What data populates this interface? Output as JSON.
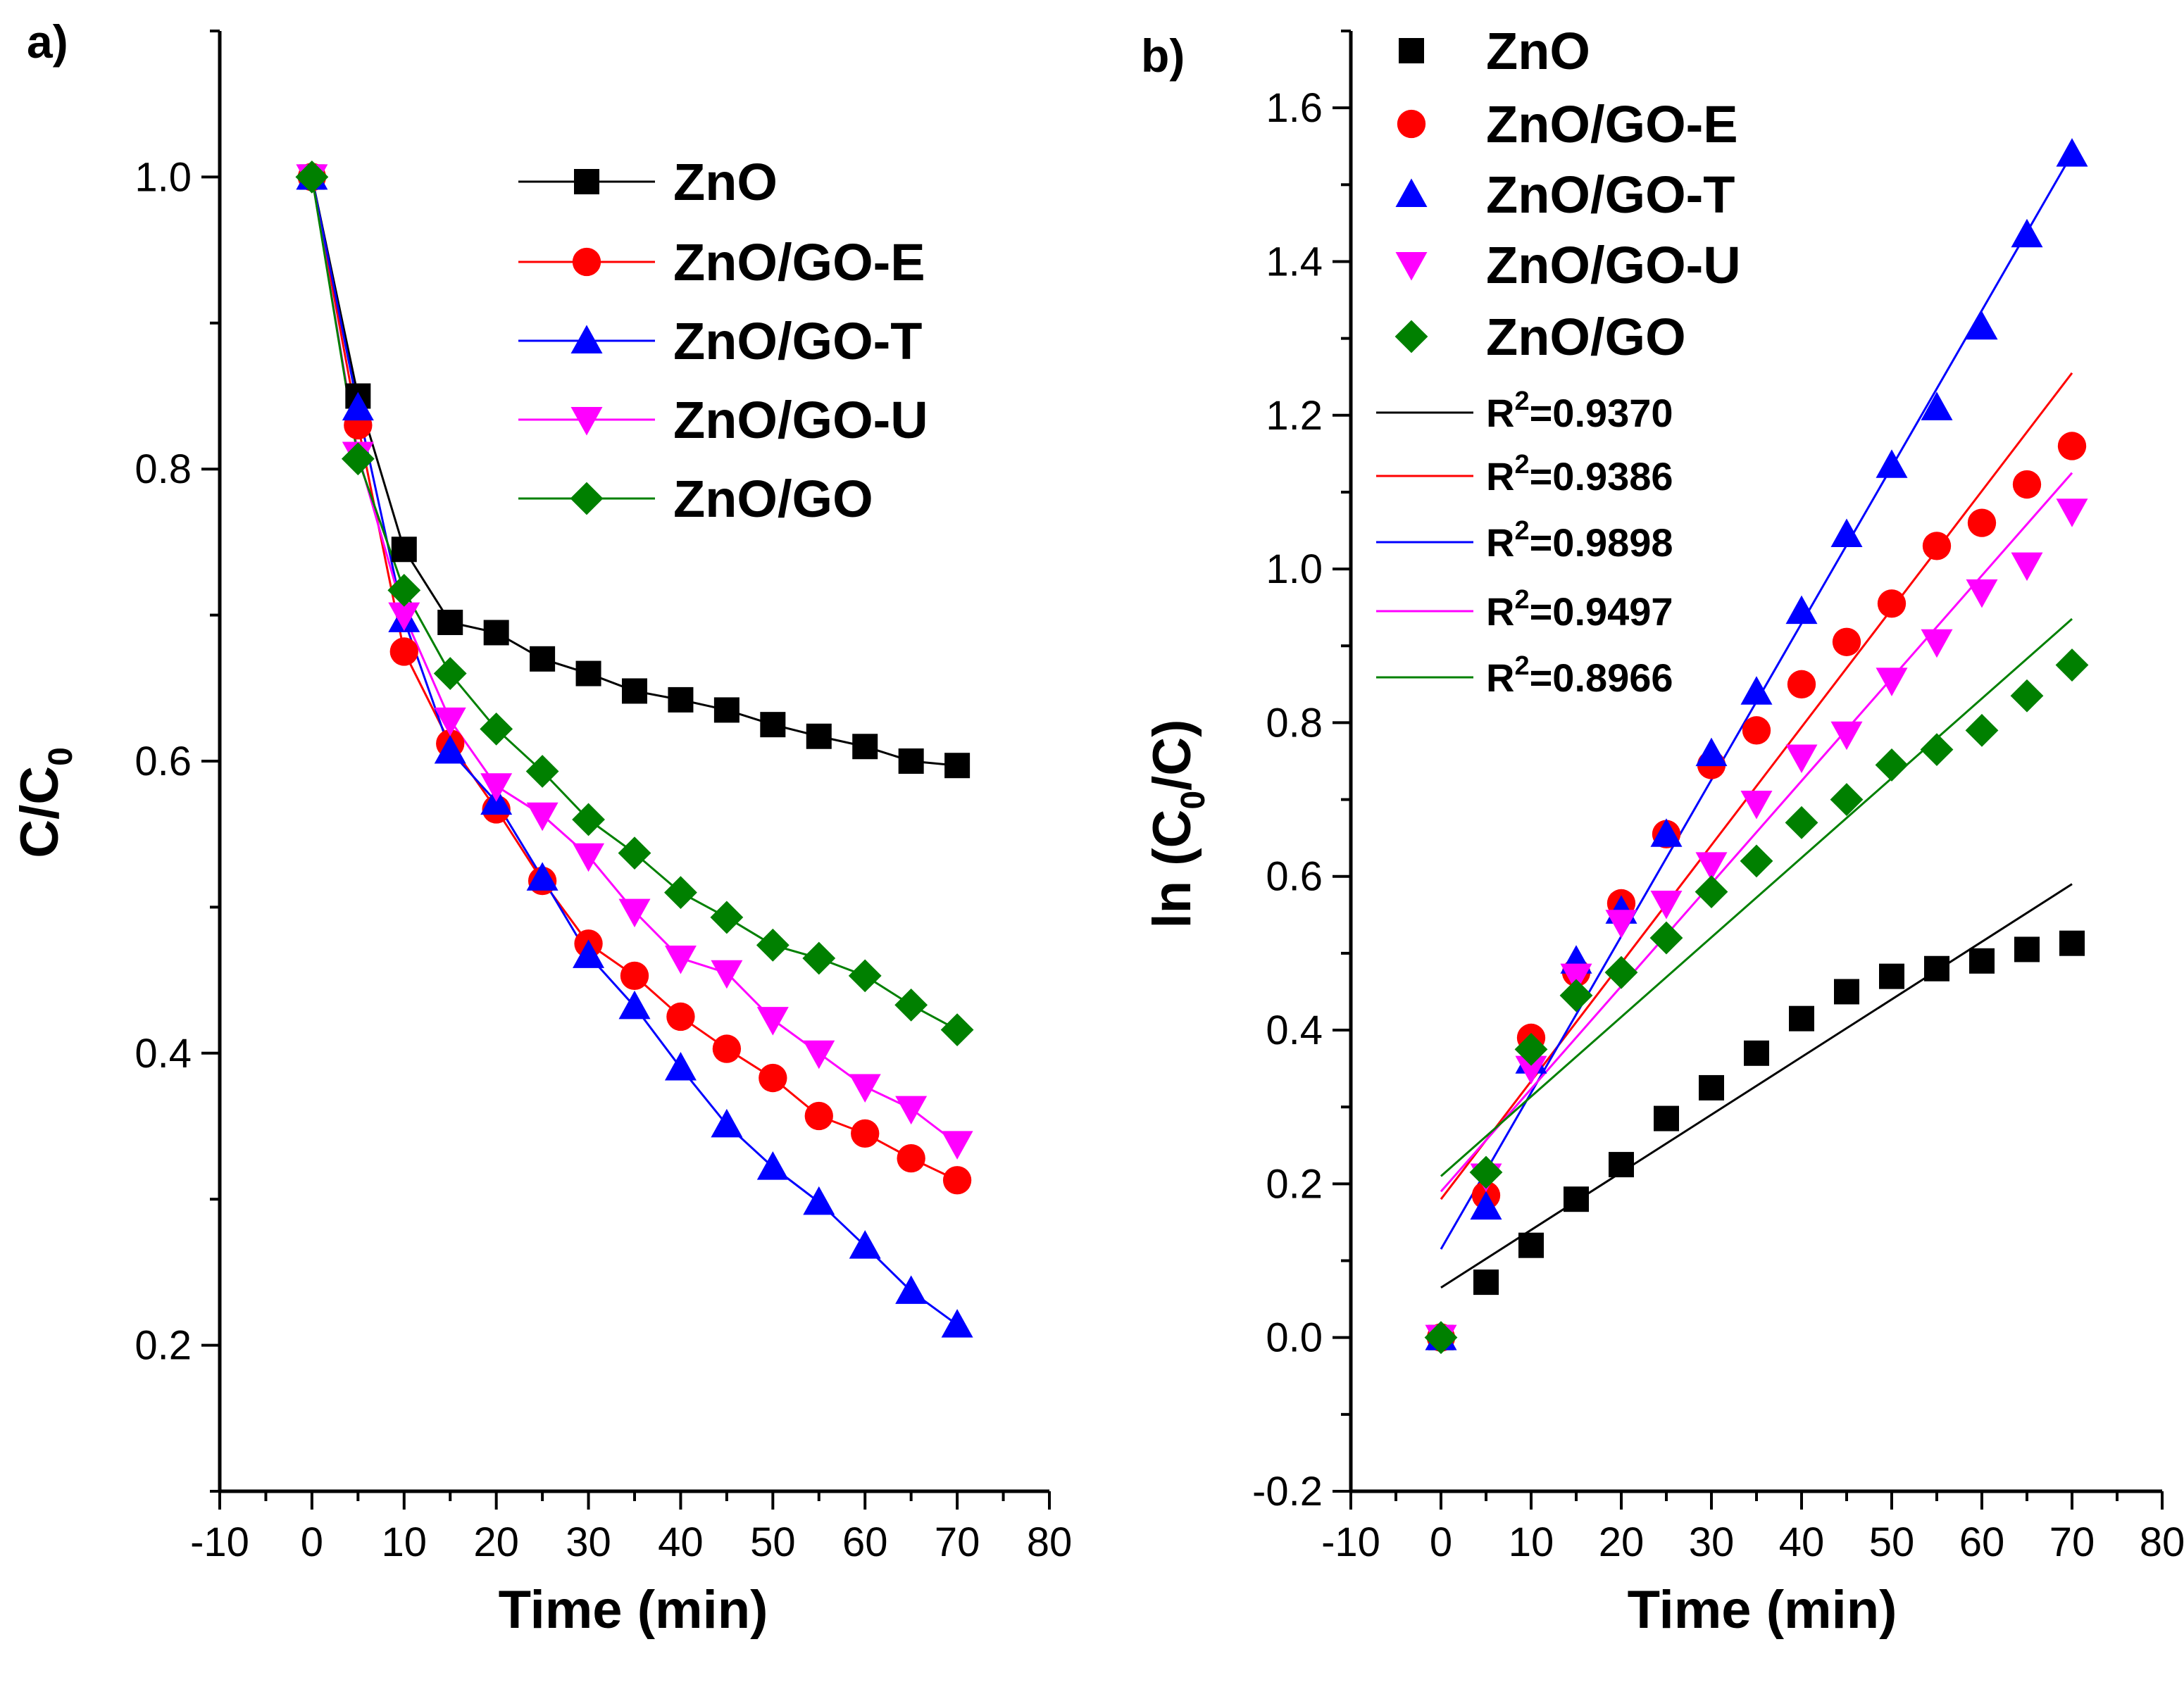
{
  "chart_data": [
    {
      "panel": "a)",
      "type": "line",
      "xlabel": "Time (min)",
      "ylabel": {
        "main": "C/C",
        "sub": "0"
      },
      "xlim": [
        -10,
        80
      ],
      "ylim": [
        0.1,
        1.1
      ],
      "xticks": [
        -10,
        0,
        10,
        20,
        30,
        40,
        50,
        60,
        70,
        80
      ],
      "yticks": [
        0.2,
        0.4,
        0.6,
        0.8,
        1.0
      ],
      "xtick_labels": [
        "-10",
        "0",
        "10",
        "20",
        "30",
        "40",
        "50",
        "60",
        "70",
        "80"
      ],
      "ytick_labels": [
        "0.2",
        "0.4",
        "0.6",
        "0.8",
        "1.0"
      ],
      "legend_position": "top-right",
      "x": [
        0,
        5,
        10,
        15,
        20,
        25,
        30,
        35,
        40,
        45,
        50,
        55,
        60,
        65,
        70
      ],
      "series": [
        {
          "name": "ZnO",
          "color": "#000000",
          "marker": "square",
          "values": [
            1.0,
            0.85,
            0.745,
            0.695,
            0.688,
            0.67,
            0.66,
            0.648,
            0.642,
            0.635,
            0.625,
            0.617,
            0.61,
            0.6,
            0.597
          ]
        },
        {
          "name": "ZnO/GO-E",
          "color": "#ff0000",
          "marker": "circle",
          "values": [
            1.0,
            0.83,
            0.675,
            0.612,
            0.567,
            0.518,
            0.475,
            0.453,
            0.425,
            0.403,
            0.383,
            0.357,
            0.345,
            0.328,
            0.313
          ]
        },
        {
          "name": "ZnO/GO-T",
          "color": "#0000ff",
          "marker": "triangle-up",
          "values": [
            1.0,
            0.842,
            0.697,
            0.607,
            0.572,
            0.52,
            0.467,
            0.432,
            0.39,
            0.351,
            0.322,
            0.298,
            0.268,
            0.237,
            0.214
          ]
        },
        {
          "name": "ZnO/GO-U",
          "color": "#ff00ff",
          "marker": "triangle-down",
          "values": [
            1.0,
            0.81,
            0.7,
            0.628,
            0.583,
            0.563,
            0.535,
            0.497,
            0.465,
            0.455,
            0.423,
            0.4,
            0.377,
            0.362,
            0.338
          ]
        },
        {
          "name": "ZnO/GO",
          "color": "#008000",
          "marker": "diamond",
          "values": [
            1.0,
            0.807,
            0.717,
            0.66,
            0.622,
            0.593,
            0.56,
            0.537,
            0.51,
            0.493,
            0.474,
            0.465,
            0.453,
            0.433,
            0.416
          ]
        }
      ]
    },
    {
      "panel": "b)",
      "type": "scatter",
      "xlabel": "Time (min)",
      "ylabel": {
        "main": "ln (C",
        "sub": "0",
        "tail": "/C)"
      },
      "xlim": [
        -10,
        80
      ],
      "ylim": [
        -0.2,
        1.7
      ],
      "xticks": [
        -10,
        0,
        10,
        20,
        30,
        40,
        50,
        60,
        70,
        80
      ],
      "yticks": [
        -0.2,
        0.0,
        0.2,
        0.4,
        0.6,
        0.8,
        1.0,
        1.2,
        1.4,
        1.6
      ],
      "xtick_labels": [
        "-10",
        "0",
        "10",
        "20",
        "30",
        "40",
        "50",
        "60",
        "70",
        "80"
      ],
      "ytick_labels": [
        "-0.2",
        "0.0",
        "0.2",
        "0.4",
        "0.6",
        "0.8",
        "1.0",
        "1.2",
        "1.4",
        "1.6"
      ],
      "legend_position": "top-left",
      "x": [
        0,
        5,
        10,
        15,
        20,
        25,
        30,
        35,
        40,
        45,
        50,
        55,
        60,
        65,
        70
      ],
      "series": [
        {
          "name": "ZnO",
          "color": "#000000",
          "marker": "square",
          "values": [
            0.0,
            0.072,
            0.12,
            0.18,
            0.225,
            0.285,
            0.325,
            0.37,
            0.415,
            0.45,
            0.47,
            0.48,
            0.49,
            0.505,
            0.513
          ]
        },
        {
          "name": "ZnO/GO-E",
          "color": "#ff0000",
          "marker": "circle",
          "values": [
            0.0,
            0.185,
            0.39,
            0.475,
            0.565,
            0.655,
            0.745,
            0.79,
            0.85,
            0.905,
            0.955,
            1.03,
            1.06,
            1.11,
            1.16
          ]
        },
        {
          "name": "ZnO/GO-T",
          "color": "#0000ff",
          "marker": "triangle-up",
          "values": [
            0.0,
            0.17,
            0.36,
            0.49,
            0.555,
            0.655,
            0.76,
            0.84,
            0.945,
            1.045,
            1.135,
            1.21,
            1.315,
            1.435,
            1.54
          ]
        },
        {
          "name": "ZnO/GO-U",
          "color": "#ff00ff",
          "marker": "triangle-down",
          "values": [
            0.0,
            0.21,
            0.35,
            0.47,
            0.54,
            0.565,
            0.615,
            0.695,
            0.755,
            0.785,
            0.855,
            0.905,
            0.97,
            1.005,
            1.075
          ]
        },
        {
          "name": "ZnO/GO",
          "color": "#008000",
          "marker": "diamond",
          "values": [
            0.0,
            0.215,
            0.375,
            0.445,
            0.475,
            0.52,
            0.58,
            0.62,
            0.67,
            0.7,
            0.745,
            0.765,
            0.79,
            0.835,
            0.875
          ]
        }
      ],
      "fits": [
        {
          "r2_label": "R",
          "r2_sup": "2",
          "r2_value": "=0.9370",
          "color": "#000000",
          "x_range": [
            0,
            70
          ],
          "y_range": [
            0.065,
            0.59
          ]
        },
        {
          "r2_label": "R",
          "r2_sup": "2",
          "r2_value": "=0.9386",
          "color": "#ff0000",
          "x_range": [
            0,
            70
          ],
          "y_range": [
            0.18,
            1.255
          ]
        },
        {
          "r2_label": "R",
          "r2_sup": "2",
          "r2_value": "=0.9898",
          "color": "#0000ff",
          "x_range": [
            0,
            70
          ],
          "y_range": [
            0.115,
            1.54
          ]
        },
        {
          "r2_label": "R",
          "r2_sup": "2",
          "r2_value": "=0.9497",
          "color": "#ff00ff",
          "x_range": [
            0,
            70
          ],
          "y_range": [
            0.19,
            1.125
          ]
        },
        {
          "r2_label": "R",
          "r2_sup": "2",
          "r2_value": "=0.8966",
          "color": "#008000",
          "x_range": [
            0,
            70
          ],
          "y_range": [
            0.21,
            0.935
          ]
        }
      ]
    }
  ]
}
